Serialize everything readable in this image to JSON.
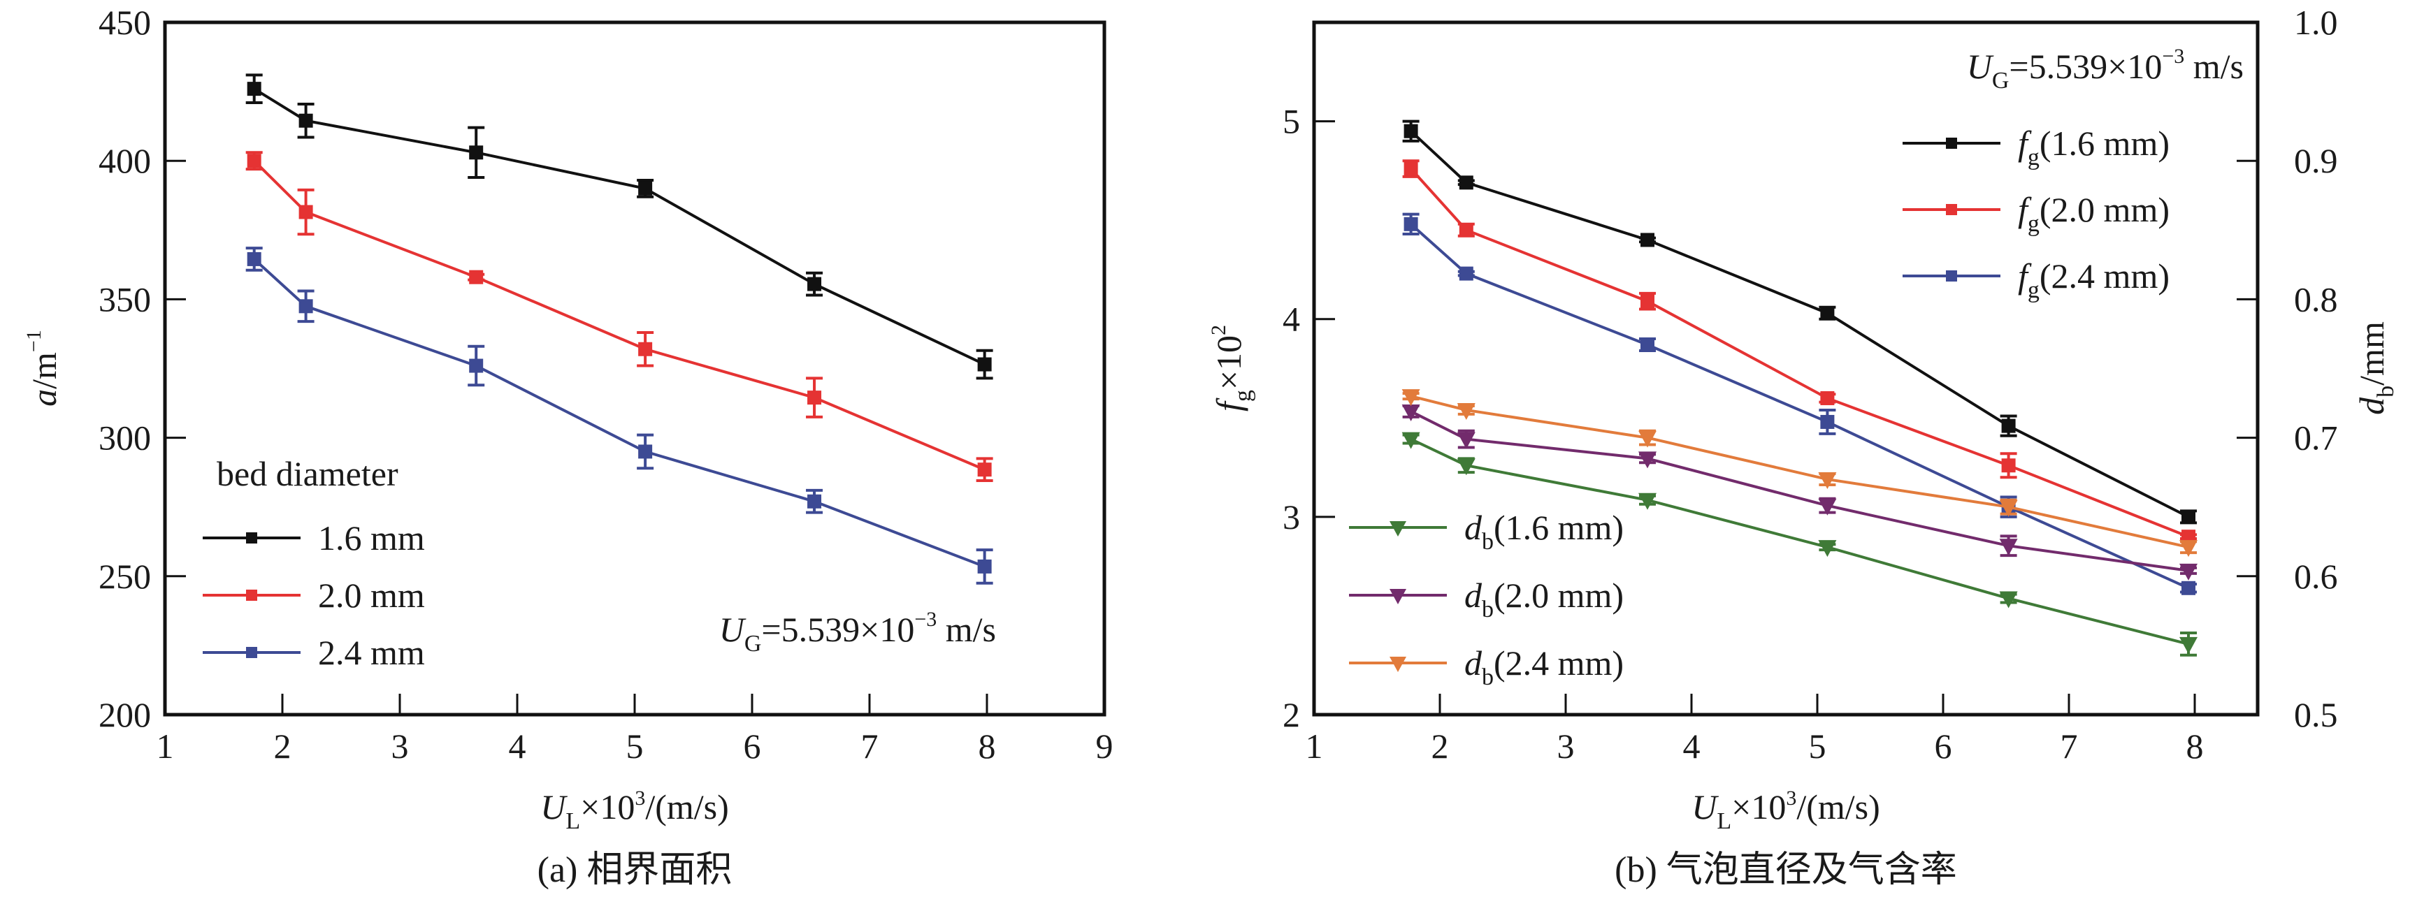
{
  "chart_data": [
    {
      "id": "a",
      "type": "line",
      "title": "",
      "caption": "(a) 相界面积",
      "xlabel": {
        "main": "U",
        "sub": "L",
        "rest": "×10",
        "sup": "3",
        "tail": "/(m/s)"
      },
      "ylabel": {
        "main": "a",
        "rest": "/m",
        "sup": "−1"
      },
      "xlim": [
        1,
        9
      ],
      "ylim": [
        200,
        450
      ],
      "xticks": [
        1,
        2,
        3,
        4,
        5,
        6,
        7,
        8,
        9
      ],
      "yticks": [
        200,
        250,
        300,
        350,
        400,
        450
      ],
      "grid": false,
      "x": [
        1.76,
        2.2,
        3.65,
        5.09,
        6.53,
        7.98
      ],
      "legend": {
        "title": "bed diameter",
        "position": "bottom-left"
      },
      "annotation": {
        "main": "U",
        "sub": "G",
        "rest": "=5.539×10",
        "sup": "−3",
        "tail": " m/s",
        "position": "bottom-right"
      },
      "series": [
        {
          "name": "1.6 mm",
          "color": "#111111",
          "marker": "square",
          "axis": "left",
          "values": [
            426,
            414.5,
            403,
            390,
            355.5,
            326.5
          ],
          "errors": [
            5,
            6,
            9,
            3,
            4,
            5
          ]
        },
        {
          "name": "2.0 mm",
          "color": "#e53333",
          "marker": "square",
          "axis": "left",
          "values": [
            400,
            381.5,
            358,
            332,
            314.5,
            288.5
          ],
          "errors": [
            3,
            8,
            1,
            6,
            7,
            4
          ]
        },
        {
          "name": "2.4 mm",
          "color": "#3d4a94",
          "marker": "square",
          "axis": "left",
          "values": [
            364.5,
            347.5,
            326,
            295,
            277,
            253.5
          ],
          "errors": [
            4,
            5.5,
            7,
            6,
            4,
            6
          ]
        }
      ]
    },
    {
      "id": "b",
      "type": "line",
      "title": "",
      "caption": "(b) 气泡直径及气含率",
      "xlabel": {
        "main": "U",
        "sub": "L",
        "rest": "×10",
        "sup": "3",
        "tail": "/(m/s)"
      },
      "ylabel": {
        "main": "f",
        "sub": "g",
        "rest": "×10",
        "sup": "2"
      },
      "y2label": {
        "main": "d",
        "sub": "b",
        "rest": "/mm"
      },
      "xlim": [
        1,
        8.5
      ],
      "ylim": [
        2,
        5.5
      ],
      "y2lim": [
        0.5,
        1.0
      ],
      "xticks": [
        1,
        2,
        3,
        4,
        5,
        6,
        7,
        8
      ],
      "yticks": [
        2,
        3,
        4,
        5
      ],
      "y2ticks": [
        0.5,
        0.6,
        0.7,
        0.8,
        0.9,
        1.0
      ],
      "y2ticklabels": [
        "0.5",
        "0.6",
        "0.7",
        "0.8",
        "0.9",
        "1.0"
      ],
      "grid": false,
      "x": [
        1.77,
        2.21,
        3.65,
        5.08,
        6.52,
        7.95
      ],
      "annotation": {
        "main": "U",
        "sub": "G",
        "rest": "=5.539×10",
        "sup": "−3",
        "tail": " m/s",
        "position": "top-right"
      },
      "legend_fg_position": "top-right",
      "legend_db_position": "bottom-left",
      "series": [
        {
          "name": "f_g(1.6 mm)",
          "label_main": "f",
          "label_sub": "g",
          "label_rest": "(1.6 mm)",
          "color": "#111111",
          "marker": "square",
          "axis": "left",
          "values": [
            4.95,
            4.69,
            4.4,
            4.03,
            3.46,
            3.0
          ],
          "errors": [
            0.05,
            0.01,
            0.01,
            0.03,
            0.05,
            0.03
          ]
        },
        {
          "name": "f_g(2.0 mm)",
          "label_main": "f",
          "label_sub": "g",
          "label_rest": "(2.0 mm)",
          "color": "#e53333",
          "marker": "square",
          "axis": "left",
          "values": [
            4.76,
            4.45,
            4.09,
            3.6,
            3.26,
            2.9
          ],
          "errors": [
            0.04,
            0.03,
            0.04,
            0.02,
            0.06,
            0.01
          ]
        },
        {
          "name": "f_g(2.4 mm)",
          "label_main": "f",
          "label_sub": "g",
          "label_rest": "(2.4 mm)",
          "color": "#3d4a94",
          "marker": "square",
          "axis": "left",
          "values": [
            4.48,
            4.23,
            3.87,
            3.48,
            3.05,
            2.64
          ],
          "errors": [
            0.05,
            0.01,
            0.03,
            0.06,
            0.05,
            0.02
          ]
        },
        {
          "name": "d_b(1.6 mm)",
          "label_main": "d",
          "label_sub": "b",
          "label_rest": "(1.6 mm)",
          "color": "#3f7a37",
          "marker": "triangle-down",
          "axis": "right",
          "values": [
            0.699,
            0.68,
            0.655,
            0.621,
            0.584,
            0.551
          ],
          "errors": [
            0.003,
            0.005,
            0.003,
            0.002,
            0.003,
            0.008
          ]
        },
        {
          "name": "d_b(2.0 mm)",
          "label_main": "d",
          "label_sub": "b",
          "label_rest": "(2.0 mm)",
          "color": "#722b6c",
          "marker": "triangle-down",
          "axis": "right",
          "values": [
            0.719,
            0.699,
            0.685,
            0.651,
            0.622,
            0.604
          ],
          "errors": [
            0.004,
            0.006,
            0.003,
            0.005,
            0.007,
            0.002
          ]
        },
        {
          "name": "d_b(2.4 mm)",
          "label_main": "d",
          "label_sub": "b",
          "label_rest": "(2.4 mm)",
          "color": "#e27b3b",
          "marker": "triangle-down",
          "axis": "right",
          "values": [
            0.73,
            0.72,
            0.7,
            0.67,
            0.65,
            0.621
          ],
          "errors": [
            0.002,
            0.003,
            0.005,
            0.004,
            0.005,
            0.004
          ]
        }
      ]
    }
  ]
}
